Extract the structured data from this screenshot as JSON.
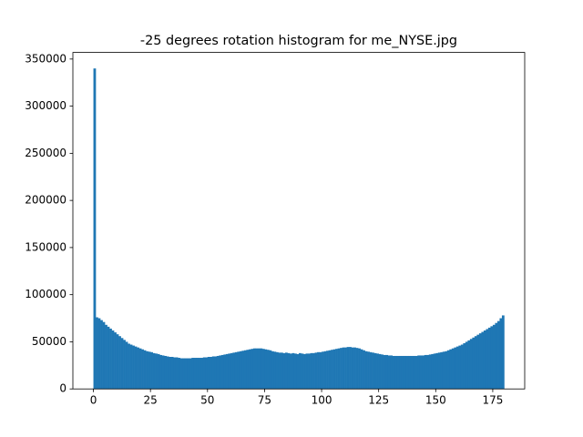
{
  "chart_data": {
    "type": "histogram",
    "title": "-25 degrees rotation histogram for me_NYSE.jpg",
    "bins": [
      0,
      1,
      2,
      3,
      4,
      5,
      6,
      7,
      8,
      9,
      10,
      11,
      12,
      13,
      14,
      15,
      16,
      17,
      18,
      19,
      20,
      21,
      22,
      23,
      24,
      25,
      26,
      27,
      28,
      29,
      30,
      31,
      32,
      33,
      34,
      35,
      36,
      37,
      38,
      39,
      40,
      41,
      42,
      43,
      44,
      45,
      46,
      47,
      48,
      49,
      50,
      51,
      52,
      53,
      54,
      55,
      56,
      57,
      58,
      59,
      60,
      61,
      62,
      63,
      64,
      65,
      66,
      67,
      68,
      69,
      70,
      71,
      72,
      73,
      74,
      75,
      76,
      77,
      78,
      79,
      80,
      81,
      82,
      83,
      84,
      85,
      86,
      87,
      88,
      89,
      90,
      91,
      92,
      93,
      94,
      95,
      96,
      97,
      98,
      99,
      100,
      101,
      102,
      103,
      104,
      105,
      106,
      107,
      108,
      109,
      110,
      111,
      112,
      113,
      114,
      115,
      116,
      117,
      118,
      119,
      120,
      121,
      122,
      123,
      124,
      125,
      126,
      127,
      128,
      129,
      130,
      131,
      132,
      133,
      134,
      135,
      136,
      137,
      138,
      139,
      140,
      141,
      142,
      143,
      144,
      145,
      146,
      147,
      148,
      149,
      150,
      151,
      152,
      153,
      154,
      155,
      156,
      157,
      158,
      159,
      160,
      161,
      162,
      163,
      164,
      165,
      166,
      167,
      168,
      169,
      170,
      171,
      172,
      173,
      174,
      175,
      176,
      177,
      178,
      179,
      180
    ],
    "counts": [
      340000,
      76000,
      75000,
      73000,
      71000,
      68000,
      66000,
      64000,
      62000,
      60000,
      58000,
      56000,
      54000,
      52000,
      50000,
      48000,
      47000,
      46000,
      45000,
      44000,
      43000,
      42000,
      41000,
      40000,
      39500,
      39000,
      38000,
      37500,
      37000,
      36000,
      35500,
      35000,
      34500,
      34000,
      34000,
      33500,
      33500,
      33000,
      32500,
      32500,
      32500,
      32500,
      32500,
      33000,
      33000,
      33000,
      33000,
      33000,
      33500,
      33500,
      34000,
      34000,
      34500,
      34500,
      35000,
      35500,
      36000,
      36500,
      37000,
      37500,
      38000,
      38500,
      39000,
      39500,
      40000,
      40500,
      41000,
      41500,
      42000,
      42500,
      43000,
      43000,
      43000,
      43000,
      42500,
      42000,
      41500,
      41000,
      40000,
      39500,
      39000,
      38500,
      38500,
      38000,
      38500,
      38000,
      37500,
      38000,
      37500,
      37000,
      38000,
      37500,
      37000,
      37500,
      37500,
      38000,
      38000,
      38500,
      39000,
      39000,
      39500,
      40000,
      40500,
      41000,
      41500,
      42000,
      42500,
      43000,
      43500,
      44000,
      44000,
      44500,
      44500,
      44000,
      44000,
      43500,
      43000,
      42000,
      41000,
      40000,
      39500,
      39000,
      38500,
      38000,
      37500,
      37000,
      36500,
      36000,
      36000,
      35500,
      35500,
      35000,
      35000,
      35000,
      35000,
      35000,
      35000,
      35000,
      35000,
      35000,
      35000,
      35000,
      35500,
      35500,
      35500,
      36000,
      36000,
      36500,
      37000,
      37500,
      38000,
      38500,
      39000,
      39500,
      40000,
      41000,
      42000,
      43000,
      44000,
      45000,
      46000,
      47000,
      48500,
      50000,
      51500,
      53000,
      54500,
      56000,
      57500,
      59000,
      60500,
      62000,
      63500,
      65000,
      66500,
      68000,
      70000,
      72000,
      75000,
      78000
    ],
    "color": "#1f77b4",
    "xlim": [
      -9,
      189
    ],
    "xticks": [
      0,
      25,
      50,
      75,
      100,
      125,
      150,
      175
    ],
    "ylim": [
      0,
      357000
    ],
    "yticks": [
      0,
      50000,
      100000,
      150000,
      200000,
      250000,
      300000,
      350000
    ]
  }
}
